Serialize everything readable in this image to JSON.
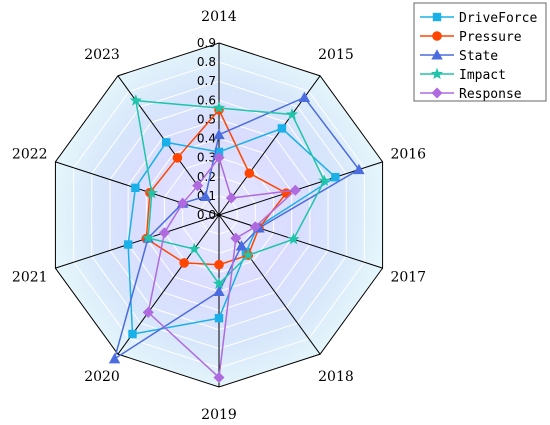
{
  "chart_data": {
    "type": "radar",
    "categories": [
      "2014",
      "2015",
      "2016",
      "2017",
      "2018",
      "2019",
      "2020",
      "2021",
      "2022",
      "2023"
    ],
    "rlim": [
      0,
      0.9
    ],
    "ticks": [
      "0.0",
      "0.1",
      "0.2",
      "0.3",
      "0.4",
      "0.5",
      "0.6",
      "0.7",
      "0.8",
      "0.9"
    ],
    "grid": true,
    "legend_position": "top-right",
    "series": [
      {
        "name": "DriveForce",
        "color": "#1ab0e8",
        "marker": "square",
        "values": [
          0.33,
          0.56,
          0.64,
          0.21,
          0.24,
          0.54,
          0.77,
          0.5,
          0.46,
          0.47
        ]
      },
      {
        "name": "Pressure",
        "color": "#ff4500",
        "marker": "circle",
        "values": [
          0.55,
          0.27,
          0.37,
          0.22,
          0.26,
          0.26,
          0.31,
          0.4,
          0.38,
          0.37
        ]
      },
      {
        "name": "State",
        "color": "#4b6cde",
        "marker": "triangle",
        "values": [
          0.42,
          0.76,
          0.77,
          0.22,
          0.2,
          0.4,
          0.93,
          0.39,
          0.2,
          0.12
        ]
      },
      {
        "name": "Impact",
        "color": "#20c4a8",
        "marker": "star",
        "values": [
          0.56,
          0.65,
          0.58,
          0.41,
          0.26,
          0.36,
          0.22,
          0.39,
          0.37,
          0.74
        ]
      },
      {
        "name": "Response",
        "color": "#b06ae0",
        "marker": "diamond",
        "values": [
          0.3,
          0.11,
          0.42,
          0.2,
          0.15,
          0.85,
          0.63,
          0.3,
          0.2,
          0.19
        ]
      }
    ]
  }
}
